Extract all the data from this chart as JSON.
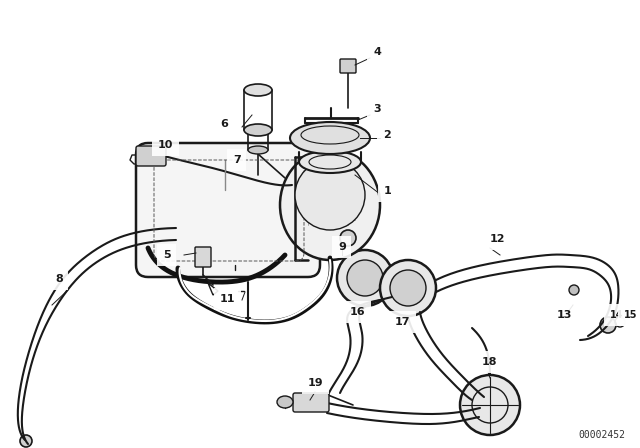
{
  "bg_color": "#ffffff",
  "line_color": "#1a1a1a",
  "diagram_id": "00002452",
  "figsize": [
    6.4,
    4.48
  ],
  "dpi": 100
}
